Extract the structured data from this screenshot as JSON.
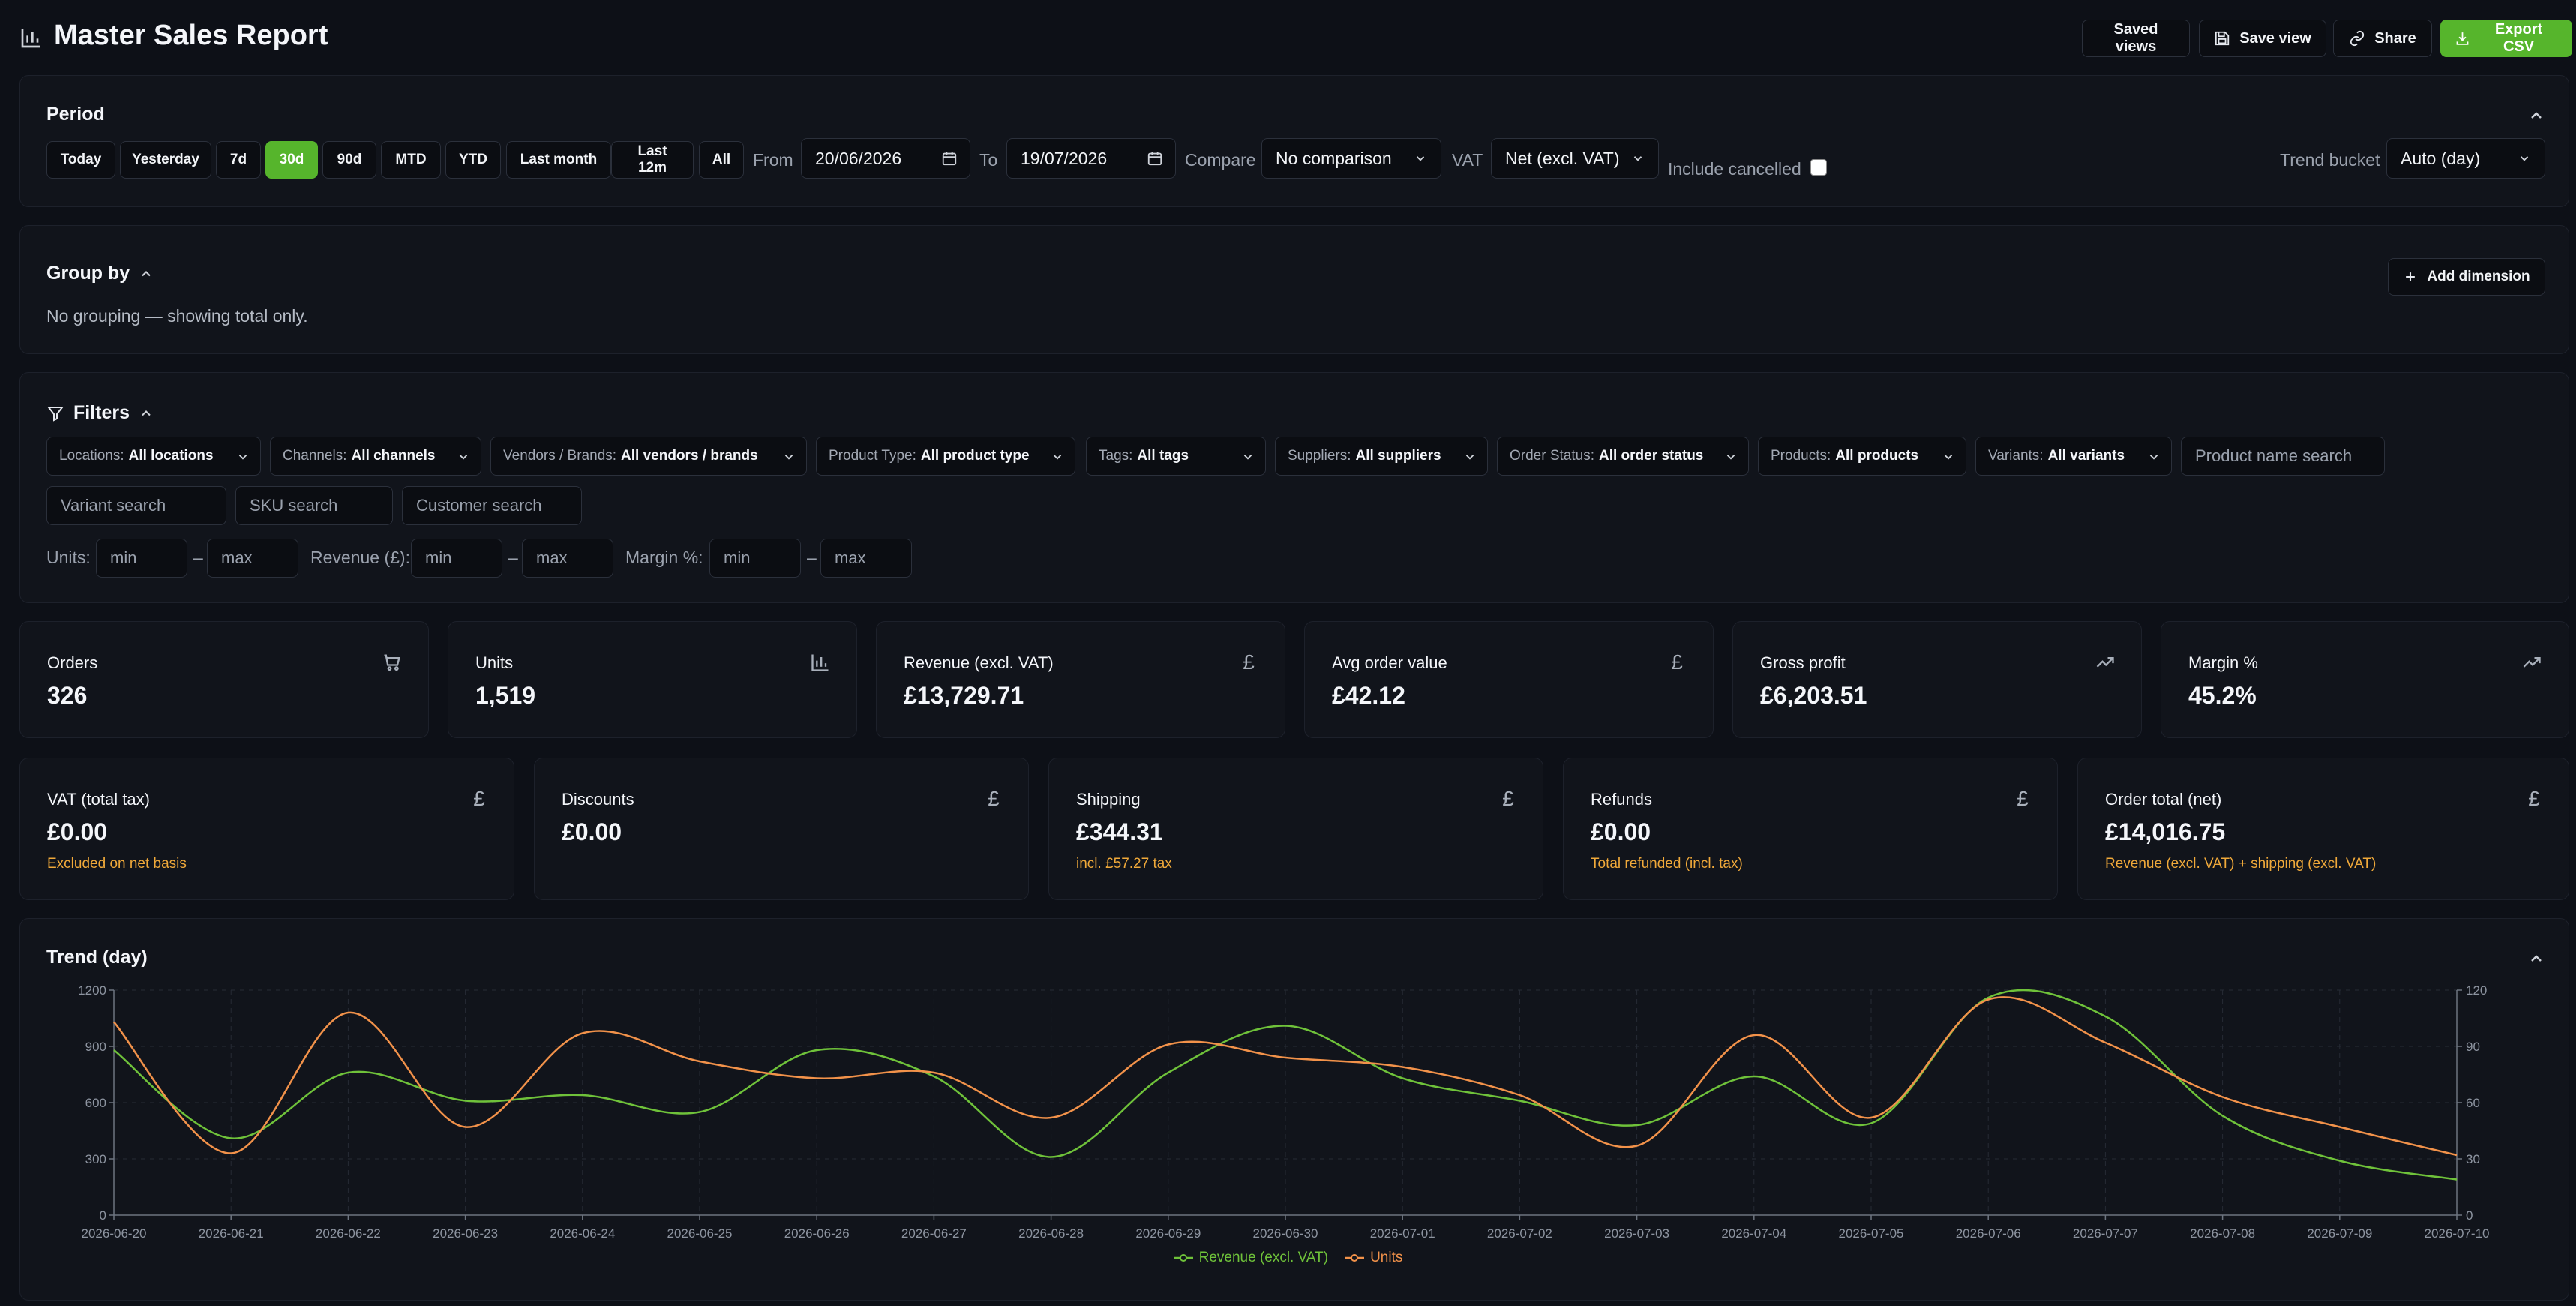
{
  "header": {
    "title": "Master Sales Report",
    "saved_views": "Saved views",
    "save_view": "Save view",
    "share": "Share",
    "export_csv": "Export CSV"
  },
  "period": {
    "title": "Period",
    "buttons": [
      "Today",
      "Yesterday",
      "7d",
      "30d",
      "90d",
      "MTD",
      "YTD",
      "Last month",
      "Last 12m",
      "All"
    ],
    "active": "30d",
    "from_label": "From",
    "from_value": "20/06/2026",
    "to_label": "To",
    "to_value": "19/07/2026",
    "compare_label": "Compare",
    "compare_value": "No comparison",
    "vat_label": "VAT",
    "vat_value": "Net (excl. VAT)",
    "include_cancelled": "Include cancelled",
    "trend_bucket_label": "Trend bucket",
    "trend_bucket_value": "Auto (day)"
  },
  "group_by": {
    "title": "Group by",
    "empty_text": "No grouping — showing total only.",
    "add_dimension": "Add dimension"
  },
  "filters": {
    "title": "Filters",
    "pills": [
      {
        "key": "Locations:",
        "value": "All locations"
      },
      {
        "key": "Channels:",
        "value": "All channels"
      },
      {
        "key": "Vendors / Brands:",
        "value": "All vendors / brands"
      },
      {
        "key": "Product Type:",
        "value": "All product type"
      },
      {
        "key": "Tags:",
        "value": "All tags"
      },
      {
        "key": "Suppliers:",
        "value": "All suppliers"
      },
      {
        "key": "Order Status:",
        "value": "All order status"
      },
      {
        "key": "Products:",
        "value": "All products"
      },
      {
        "key": "Variants:",
        "value": "All variants"
      }
    ],
    "product_name_placeholder": "Product name search",
    "variant_placeholder": "Variant search",
    "sku_placeholder": "SKU search",
    "customer_placeholder": "Customer search",
    "units_label": "Units:",
    "revenue_label": "Revenue (£):",
    "margin_label": "Margin %:",
    "min_placeholder": "min",
    "max_placeholder": "max",
    "dash": "–"
  },
  "kpis_row1": [
    {
      "label": "Orders",
      "value": "326",
      "icon": "cart-icon"
    },
    {
      "label": "Units",
      "value": "1,519",
      "icon": "bar-chart-icon"
    },
    {
      "label": "Revenue (excl. VAT)",
      "value": "£13,729.71",
      "icon": "pound-icon"
    },
    {
      "label": "Avg order value",
      "value": "£42.12",
      "icon": "pound-icon"
    },
    {
      "label": "Gross profit",
      "value": "£6,203.51",
      "icon": "trend-up-icon"
    },
    {
      "label": "Margin %",
      "value": "45.2%",
      "icon": "trend-up-icon"
    }
  ],
  "kpis_row2": [
    {
      "label": "VAT (total tax)",
      "value": "£0.00",
      "note": "Excluded on net basis",
      "icon": "pound-icon"
    },
    {
      "label": "Discounts",
      "value": "£0.00",
      "note": "",
      "icon": "pound-icon"
    },
    {
      "label": "Shipping",
      "value": "£344.31",
      "note": "incl. £57.27 tax",
      "icon": "pound-icon"
    },
    {
      "label": "Refunds",
      "value": "£0.00",
      "note": "Total refunded (incl. tax)",
      "icon": "pound-icon"
    },
    {
      "label": "Order total (net)",
      "value": "£14,016.75",
      "note": "Revenue (excl. VAT) + shipping (excl. VAT)",
      "icon": "pound-icon"
    }
  ],
  "trend": {
    "title": "Trend (day)"
  },
  "colors": {
    "accent": "#56b52c",
    "revenue": "#6fc23a",
    "units": "#f2924a",
    "note": "#f0a93a"
  },
  "chart_data": {
    "type": "line",
    "x": [
      "2026-06-20",
      "2026-06-21",
      "2026-06-22",
      "2026-06-23",
      "2026-06-24",
      "2026-06-25",
      "2026-06-26",
      "2026-06-27",
      "2026-06-28",
      "2026-06-29",
      "2026-06-30",
      "2026-07-01",
      "2026-07-02",
      "2026-07-03",
      "2026-07-04",
      "2026-07-05",
      "2026-07-06",
      "2026-07-07",
      "2026-07-08",
      "2026-07-09",
      "2026-07-10"
    ],
    "y_left": {
      "ticks": [
        0,
        300,
        600,
        900,
        1200
      ],
      "ylim": [
        0,
        1200
      ]
    },
    "y_right": {
      "ticks": [
        0,
        30,
        60,
        90,
        120
      ],
      "ylim": [
        0,
        120
      ]
    },
    "series": [
      {
        "name": "Revenue (excl. VAT)",
        "axis": "left",
        "color": "#6fc23a",
        "values": [
          880,
          410,
          760,
          610,
          640,
          550,
          880,
          740,
          310,
          760,
          1010,
          730,
          610,
          480,
          740,
          490,
          1160,
          1060,
          530,
          290,
          190
        ]
      },
      {
        "name": "Units",
        "axis": "right",
        "color": "#f2924a",
        "values": [
          103,
          33,
          108,
          47,
          97,
          82,
          73,
          76,
          52,
          91,
          84,
          79,
          64,
          37,
          96,
          52,
          115,
          92,
          63,
          47,
          32
        ]
      }
    ],
    "grid": true,
    "legend": "bottom-center"
  }
}
